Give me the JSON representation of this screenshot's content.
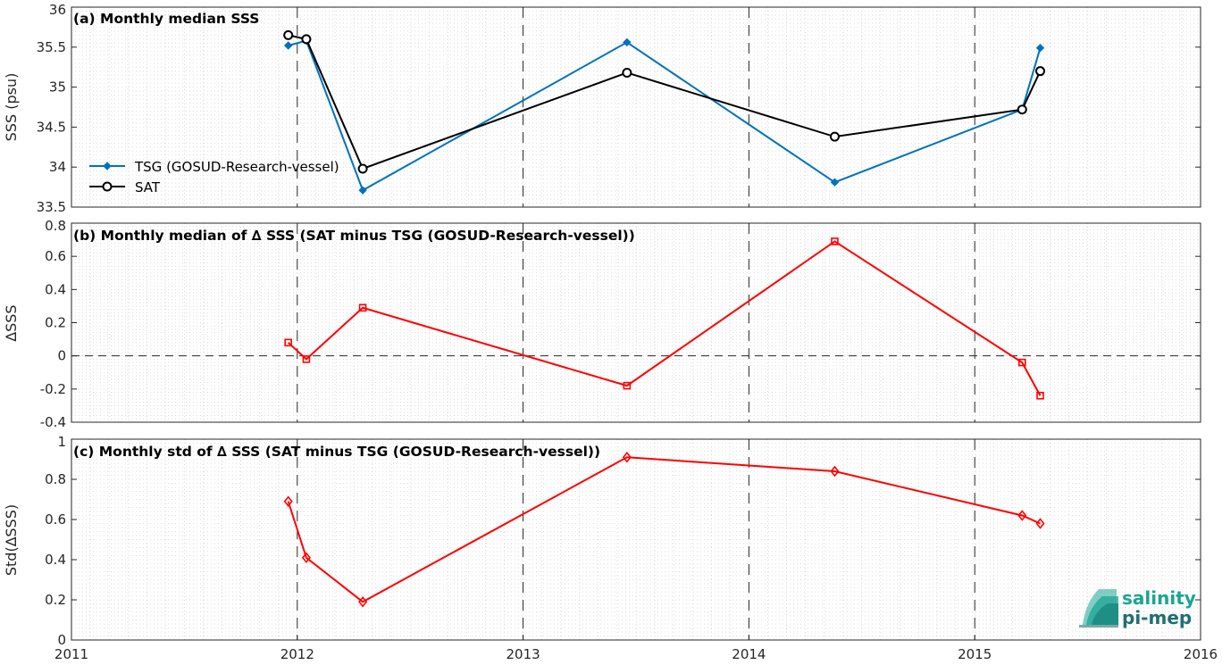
{
  "colors": {
    "tsg": "#0072BD",
    "sat": "#000000",
    "delta": "#FF0000",
    "logo_teal": "#1aa593",
    "logo_dark": "#1f6f72"
  },
  "logo": {
    "line1": "salinity",
    "line2": "pi-mep"
  },
  "chart_data": [
    {
      "type": "line",
      "title": "(a) Monthly median SSS",
      "ylabel": "SSS (psu)",
      "xlim": [
        2011,
        2016
      ],
      "ylim": [
        33.5,
        36
      ],
      "x_ticks": [
        2011,
        2012,
        2013,
        2014,
        2015,
        2016
      ],
      "x_tick_labels": [
        "2011",
        "2012",
        "2013",
        "2014",
        "2015",
        "2016"
      ],
      "y_ticks": [
        33.5,
        34,
        34.5,
        35,
        35.5,
        36
      ],
      "y_tick_labels": [
        "33.5",
        "34",
        "34.5",
        "35",
        "35.5",
        "36"
      ],
      "grid": true,
      "legend_position": "left",
      "series": [
        {
          "name": "TSG (GOSUD-Research-vessel)",
          "marker": "diamond-filled",
          "colorKey": "tsg",
          "x": [
            2011.96,
            2012.04,
            2012.29,
            2013.46,
            2014.38,
            2015.21,
            2015.29
          ],
          "y": [
            35.52,
            35.58,
            33.71,
            35.56,
            33.81,
            34.72,
            35.49
          ]
        },
        {
          "name": "SAT",
          "marker": "circle",
          "colorKey": "sat",
          "x": [
            2011.96,
            2012.04,
            2012.29,
            2013.46,
            2014.38,
            2015.21,
            2015.29
          ],
          "y": [
            35.65,
            35.6,
            33.98,
            35.18,
            34.38,
            34.72,
            35.2
          ]
        }
      ]
    },
    {
      "type": "line",
      "title": "(b) Monthly median of ∆ SSS (SAT minus TSG (GOSUD-Research-vessel))",
      "ylabel": "∆SSS",
      "xlim": [
        2011,
        2016
      ],
      "ylim": [
        -0.4,
        0.8
      ],
      "y_ticks": [
        -0.4,
        -0.2,
        0,
        0.2,
        0.4,
        0.6,
        0.8
      ],
      "y_tick_labels": [
        "-0.4",
        "-0.2",
        "0",
        "0.2",
        "0.4",
        "0.6",
        "0.8"
      ],
      "grid": true,
      "zero_line": true,
      "series": [
        {
          "marker": "square",
          "colorKey": "delta",
          "x": [
            2011.96,
            2012.04,
            2012.29,
            2013.46,
            2014.38,
            2015.21,
            2015.29
          ],
          "y": [
            0.08,
            -0.02,
            0.29,
            -0.18,
            0.69,
            -0.04,
            -0.24
          ]
        }
      ]
    },
    {
      "type": "line",
      "title": "(c) Monthly std of ∆ SSS (SAT minus TSG (GOSUD-Research-vessel))",
      "ylabel": "Std(∆SSS)",
      "xlim": [
        2011,
        2016
      ],
      "ylim": [
        0,
        1
      ],
      "x_ticks": [
        2011,
        2012,
        2013,
        2014,
        2015,
        2016
      ],
      "x_tick_labels": [
        "2011",
        "2012",
        "2013",
        "2014",
        "2015",
        "2016"
      ],
      "y_ticks": [
        0,
        0.2,
        0.4,
        0.6,
        0.8,
        1
      ],
      "y_tick_labels": [
        "0",
        "0.2",
        "0.4",
        "0.6",
        "0.8",
        "1"
      ],
      "grid": true,
      "series": [
        {
          "marker": "diamond",
          "colorKey": "delta",
          "x": [
            2011.96,
            2012.04,
            2012.29,
            2013.46,
            2014.38,
            2015.21,
            2015.29
          ],
          "y": [
            0.69,
            0.41,
            0.19,
            0.91,
            0.84,
            0.62,
            0.58
          ]
        }
      ]
    }
  ]
}
